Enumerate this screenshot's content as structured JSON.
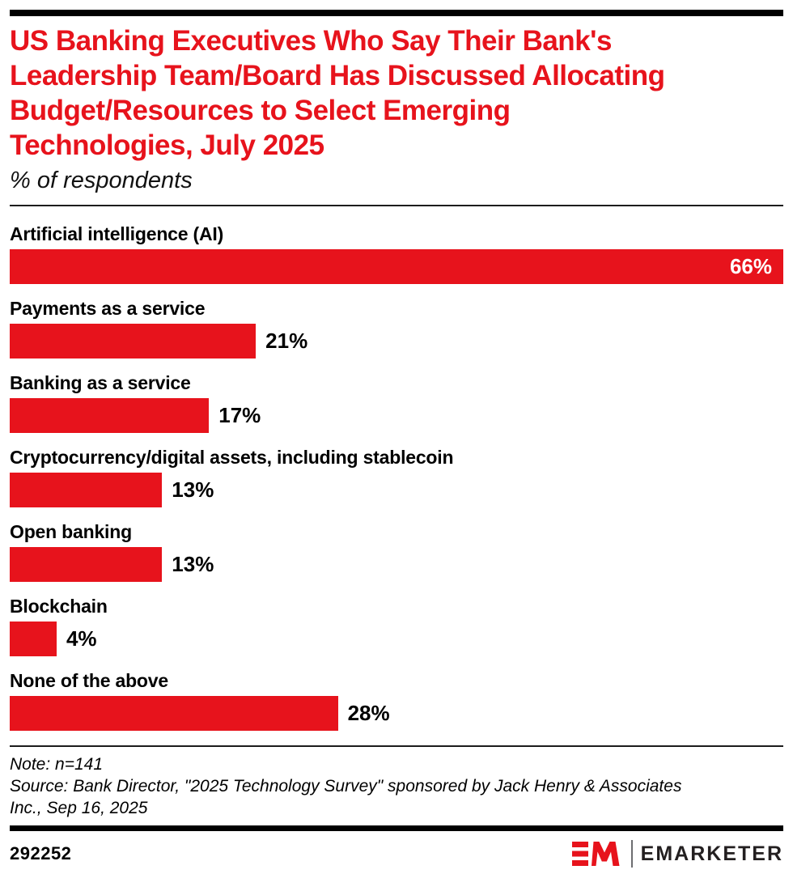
{
  "page": {
    "title_lines": [
      "US Banking Executives Who Say Their Bank's",
      "Leadership Team/Board Has Discussed Allocating",
      "Budget/Resources to Select Emerging",
      "Technologies, July 2025"
    ],
    "subtitle": "% of respondents",
    "note": "Note: n=141",
    "source_lines": [
      "Source: Bank Director, \"2025 Technology Survey\" sponsored by Jack Henry & Associates",
      "Inc., Sep 16, 2025"
    ],
    "footer": {
      "chart_id": "292252",
      "brand": "EMARKETER",
      "logo_monogram": "EM"
    }
  },
  "colors": {
    "accent_red": "#E7131C",
    "text_black": "#000000",
    "logo_text": "#231F20",
    "value_inside_text": "#FFFFFF",
    "rule_black": "#000000"
  },
  "chart_data": {
    "type": "bar",
    "orientation": "horizontal",
    "title": "US Banking Executives Who Say Their Bank's Leadership Team/Board Has Discussed Allocating Budget/Resources to Select Emerging Technologies, July 2025",
    "xlabel": "",
    "ylabel": "% of respondents",
    "unit": "%",
    "grid": false,
    "legend": false,
    "scale_max": 66,
    "categories": [
      "Artificial intelligence (AI)",
      "Payments as a service",
      "Banking as a service",
      "Cryptocurrency/digital assets, including stablecoin",
      "Open banking",
      "Blockchain",
      "None of the above"
    ],
    "values": [
      66,
      21,
      17,
      13,
      13,
      4,
      28
    ],
    "rows": [
      {
        "label": "Artificial intelligence (AI)",
        "value": 66,
        "value_label": "66%",
        "value_position": "inside"
      },
      {
        "label": "Payments as a service",
        "value": 21,
        "value_label": "21%",
        "value_position": "outside"
      },
      {
        "label": "Banking as a service",
        "value": 17,
        "value_label": "17%",
        "value_position": "outside"
      },
      {
        "label": "Cryptocurrency/digital assets, including stablecoin",
        "value": 13,
        "value_label": "13%",
        "value_position": "outside"
      },
      {
        "label": "Open banking",
        "value": 13,
        "value_label": "13%",
        "value_position": "outside"
      },
      {
        "label": "Blockchain",
        "value": 4,
        "value_label": "4%",
        "value_position": "outside"
      },
      {
        "label": "None of the above",
        "value": 28,
        "value_label": "28%",
        "value_position": "outside"
      }
    ]
  }
}
